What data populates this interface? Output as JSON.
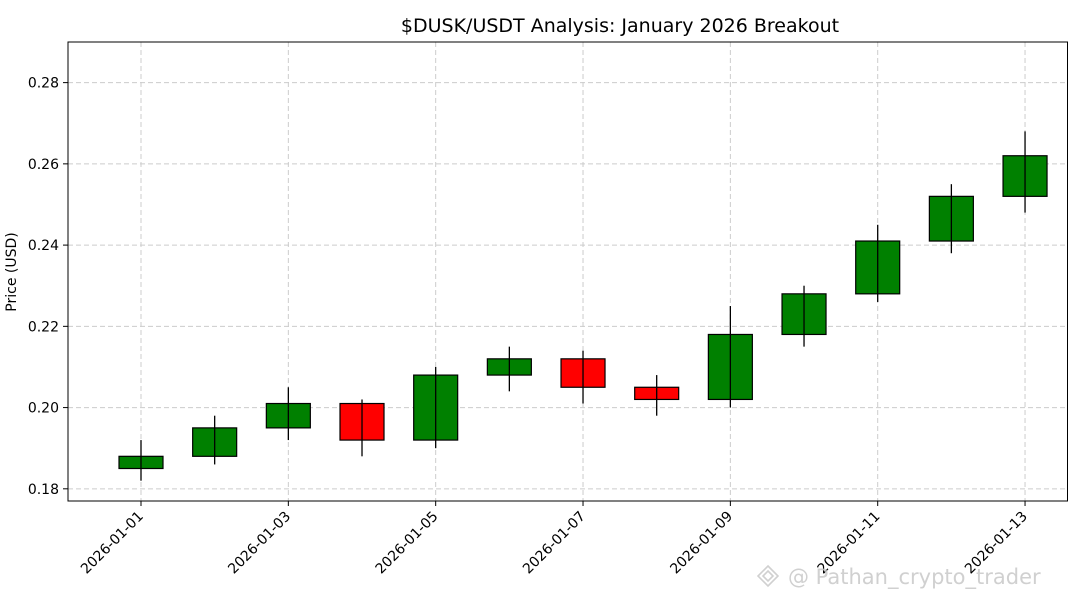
{
  "chart_data": {
    "type": "candlestick",
    "title": "$DUSK/USDT Analysis: January 2026 Breakout",
    "xlabel": "",
    "ylabel": "Price (USD)",
    "ylim": [
      0.177,
      0.29
    ],
    "yticks": [
      0.18,
      0.2,
      0.22,
      0.24,
      0.26,
      0.28
    ],
    "ytick_labels": [
      "0.18",
      "0.20",
      "0.22",
      "0.24",
      "0.26",
      "0.28"
    ],
    "xtick_labels": [
      "2026-01-01",
      "2026-01-03",
      "2026-01-05",
      "2026-01-07",
      "2026-01-09",
      "2026-01-11",
      "2026-01-13"
    ],
    "grid": true,
    "up_color": "#008000",
    "down_color": "#ff0000",
    "candles": [
      {
        "date": "2026-01-01",
        "open": 0.185,
        "high": 0.192,
        "low": 0.182,
        "close": 0.188
      },
      {
        "date": "2026-01-02",
        "open": 0.188,
        "high": 0.198,
        "low": 0.186,
        "close": 0.195
      },
      {
        "date": "2026-01-03",
        "open": 0.195,
        "high": 0.205,
        "low": 0.192,
        "close": 0.201
      },
      {
        "date": "2026-01-04",
        "open": 0.201,
        "high": 0.202,
        "low": 0.188,
        "close": 0.192
      },
      {
        "date": "2026-01-05",
        "open": 0.192,
        "high": 0.21,
        "low": 0.19,
        "close": 0.208
      },
      {
        "date": "2026-01-06",
        "open": 0.208,
        "high": 0.215,
        "low": 0.204,
        "close": 0.212
      },
      {
        "date": "2026-01-07",
        "open": 0.212,
        "high": 0.214,
        "low": 0.201,
        "close": 0.205
      },
      {
        "date": "2026-01-08",
        "open": 0.205,
        "high": 0.208,
        "low": 0.198,
        "close": 0.202
      },
      {
        "date": "2026-01-09",
        "open": 0.202,
        "high": 0.225,
        "low": 0.2,
        "close": 0.218
      },
      {
        "date": "2026-01-10",
        "open": 0.218,
        "high": 0.23,
        "low": 0.215,
        "close": 0.228
      },
      {
        "date": "2026-01-11",
        "open": 0.228,
        "high": 0.245,
        "low": 0.226,
        "close": 0.241
      },
      {
        "date": "2026-01-12",
        "open": 0.241,
        "high": 0.255,
        "low": 0.238,
        "close": 0.252
      },
      {
        "date": "2026-01-13",
        "open": 0.252,
        "high": 0.268,
        "low": 0.248,
        "close": 0.262
      }
    ]
  },
  "watermark": {
    "text": "@ Pathan_crypto_trader",
    "icon": "binance-diamond-icon"
  }
}
